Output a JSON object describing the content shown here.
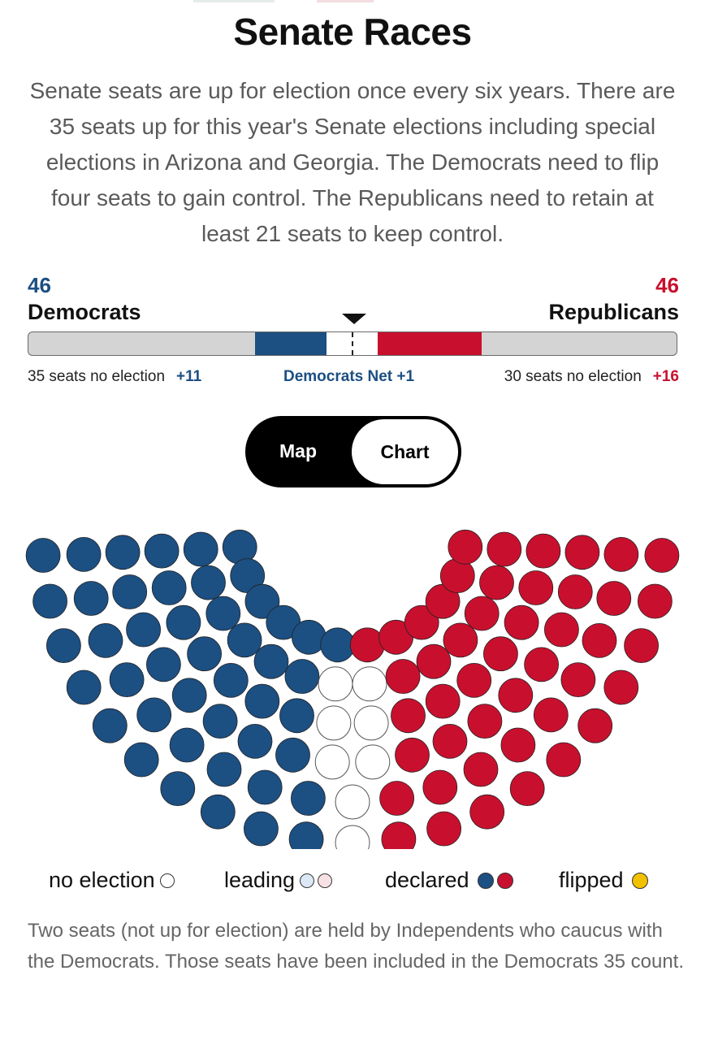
{
  "title": "Senate Races",
  "intro": "Senate seats are up for election once every six years. There are 35 seats up for this year's Senate elections including special elections in Arizona and Georgia. The Democrats need to flip four seats to gain control. The Republicans need to retain at least 21 seats to keep control.",
  "democrats": {
    "count": "46",
    "label": "Democrats",
    "no_election": "35 seats no election",
    "gain": "+11",
    "color": "#1c4f82"
  },
  "republicans": {
    "count": "46",
    "label": "Republicans",
    "no_election": "30 seats no election",
    "gain": "+16",
    "color": "#c8102e"
  },
  "net_label": "Democrats Net +1",
  "bar_data": {
    "total": 100,
    "dem_no_election": 35,
    "dem_declared": 11,
    "undecided": 8,
    "rep_declared": 16,
    "rep_no_election": 30,
    "majority_line": 50
  },
  "toggle": {
    "map_label": "Map",
    "chart_label": "Chart",
    "selected": "Chart"
  },
  "seat_chart": {
    "dem_seats": 46,
    "undecided_seats": 8,
    "rep_seats": 46,
    "colors": {
      "democrat": "#1c4f82",
      "republican": "#c8102e",
      "undecided": "#ffffff"
    }
  },
  "legend": {
    "no_election": "no election",
    "leading": "leading",
    "declared": "declared",
    "flipped": "flipped",
    "flipped_color": "#f2c200",
    "leading_dem_color": "#dce8f5",
    "leading_rep_color": "#f8e1e4"
  },
  "note": "Two seats (not up for election) are held by Independents who caucus with the Democrats. Those seats have been included in the Democrats 35 count."
}
